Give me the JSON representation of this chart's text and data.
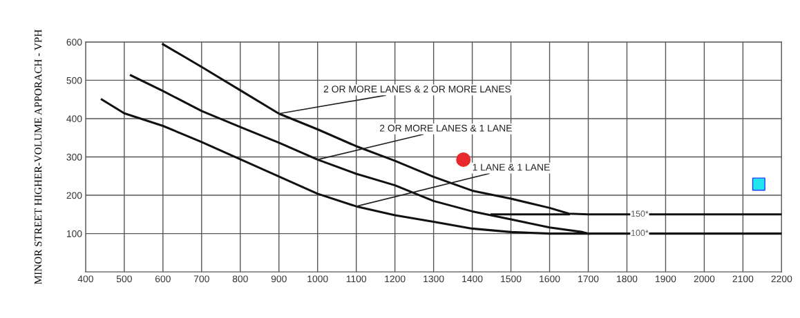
{
  "chart_data": {
    "type": "line",
    "ylabel": "MINOR STREET HIGHER-VOLUME APPORACH - VPH",
    "xlim": [
      400,
      2200
    ],
    "ylim": [
      0,
      600
    ],
    "xticks": [
      400,
      500,
      600,
      700,
      800,
      900,
      1000,
      1100,
      1200,
      1300,
      1400,
      1500,
      1600,
      1700,
      1800,
      1900,
      2000,
      2100,
      2200
    ],
    "yticks": [
      100,
      200,
      300,
      400,
      500,
      600
    ],
    "grid": true,
    "legend": false,
    "marker": "none",
    "line_style": "solid",
    "series": [
      {
        "color": "#111111",
        "x": [
          600,
          700,
          800,
          900,
          1000,
          1100,
          1200,
          1300,
          1400,
          1500,
          1600,
          1650,
          1700,
          1800,
          1900,
          2000,
          2100,
          2200
        ],
        "values": [
          594,
          535,
          474,
          413,
          372,
          328,
          290,
          248,
          212,
          191,
          167,
          152,
          150,
          150,
          150,
          150,
          150,
          150
        ]
      },
      {
        "color": "#111111",
        "x": [
          1450,
          1500,
          1600,
          1650
        ],
        "values": [
          150,
          150,
          150,
          150
        ]
      },
      {
        "color": "#111111",
        "x": [
          517,
          600,
          700,
          800,
          900,
          1000,
          1100,
          1200,
          1300,
          1400,
          1500,
          1600,
          1685,
          1700
        ],
        "values": [
          513,
          472,
          420,
          378,
          337,
          293,
          256,
          226,
          185,
          158,
          137,
          116,
          104,
          100
        ]
      },
      {
        "color": "#111111",
        "x": [
          442,
          500,
          600,
          700,
          800,
          900,
          1000,
          1100,
          1200,
          1300,
          1400,
          1500,
          1600,
          1700,
          1800,
          1900,
          2000,
          2100,
          2200
        ],
        "values": [
          450,
          414,
          381,
          339,
          294,
          249,
          204,
          171,
          148,
          131,
          113,
          104,
          100,
          100,
          100,
          100,
          100,
          100,
          100
        ]
      },
      {
        "type": "scatter",
        "marker": "circle",
        "color": "#e8292b",
        "x": [
          1377
        ],
        "values": [
          293
        ]
      },
      {
        "type": "scatter",
        "marker": "square",
        "color": "#22e5f0",
        "x": [
          2141
        ],
        "values": [
          229
        ]
      }
    ],
    "annotations": [
      {
        "text": "2 OR MORE LANES & 2 OR MORE LANES",
        "x": 900,
        "y": 413
      },
      {
        "text": "2 OR MORE LANES & 1 LANE",
        "x": 1000,
        "y": 293
      },
      {
        "text": "1 LANE & 1 LANE",
        "x": 1100,
        "y": 171
      },
      {
        "text": "150*",
        "x": 1810,
        "y": 150
      },
      {
        "text": "100*",
        "x": 1810,
        "y": 100
      }
    ]
  }
}
